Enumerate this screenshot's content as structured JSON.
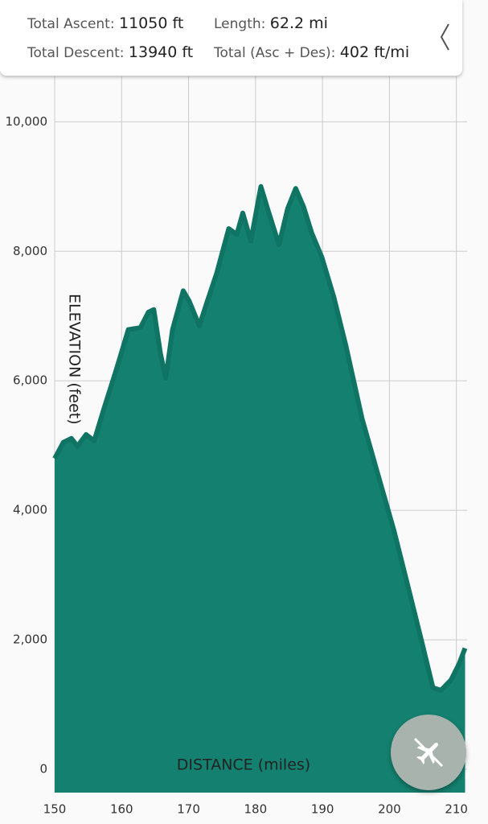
{
  "header": {
    "items": [
      {
        "label": "Total Ascent:",
        "value": "11050 ft"
      },
      {
        "label": "Length:",
        "value": "62.2 mi"
      },
      {
        "label": "Total Descent:",
        "value": "13940 ft"
      },
      {
        "label": "Total (Asc + Des):",
        "value": "402 ft/mi"
      }
    ]
  },
  "chart_data": {
    "type": "area",
    "color": "#14806f",
    "grid": true,
    "x_label": "DISTANCE (miles)",
    "y_label": "ELEVATION (feet)",
    "xlim": [
      150,
      211.6
    ],
    "ylim": [
      -360,
      10700
    ],
    "xticks": [
      150,
      160,
      170,
      180,
      190,
      200,
      210
    ],
    "yticks": [
      0,
      {
        "value": 2000,
        "label": "2,000"
      },
      {
        "value": 4000,
        "label": "4,000"
      },
      {
        "value": 6000,
        "label": "6,000"
      },
      {
        "value": 8000,
        "label": "8,000"
      },
      {
        "value": 10000,
        "label": "10,000"
      }
    ],
    "x": [
      150,
      151.3,
      152.5,
      153.4,
      154.7,
      155.9,
      157.3,
      159.2,
      161,
      162.8,
      164,
      164.8,
      165.8,
      166.6,
      167.6,
      169.2,
      170.1,
      171.6,
      172.8,
      174.2,
      176,
      177.2,
      178.1,
      179.3,
      180.8,
      181.8,
      183.5,
      184.8,
      186,
      187.2,
      188.4,
      189.9,
      191.7,
      193.5,
      195.9,
      198.3,
      200.7,
      203.1,
      204.9,
      206.5,
      207.7,
      209.2,
      210.4,
      211.3
    ],
    "values": [
      4800,
      5050,
      5110,
      4990,
      5170,
      5070,
      5550,
      6170,
      6790,
      6820,
      7060,
      7100,
      6420,
      6040,
      6790,
      7390,
      7230,
      6850,
      7230,
      7660,
      8350,
      8260,
      8590,
      8160,
      9000,
      8660,
      8100,
      8660,
      8970,
      8680,
      8280,
      7910,
      7290,
      6540,
      5420,
      4550,
      3680,
      2690,
      1940,
      1260,
      1220,
      1380,
      1630,
      1870
    ]
  }
}
